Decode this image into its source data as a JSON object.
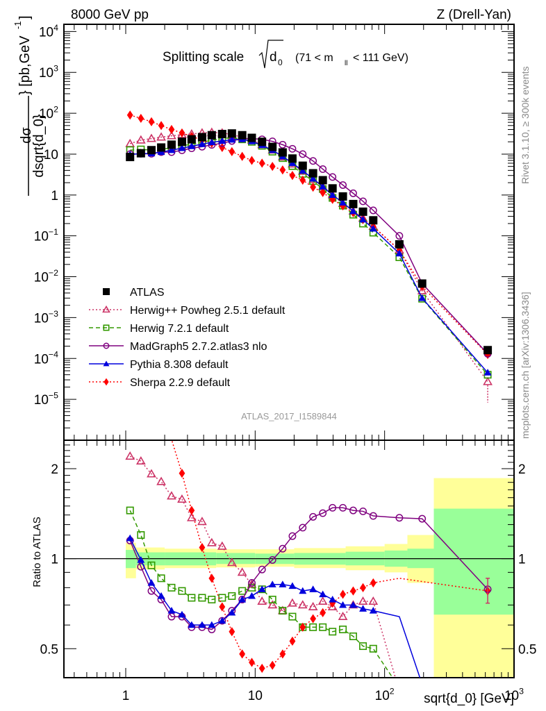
{
  "header": {
    "left_label": "8000 GeV pp",
    "right_label": "Z (Drell-Yan)"
  },
  "side_labels": {
    "rivet": "Rivet 3.1.10, ≥ 300k events",
    "source": "mcplots.cern.ch [arXiv:1306.3436]"
  },
  "watermark": "ATLAS_2017_I1589844",
  "colors": {
    "atlas": "#000000",
    "herwigpp": "#cc3366",
    "herwig7": "#339900",
    "madgraph": "#7f007f",
    "pythia": "#0000dd",
    "sherpa": "#ff0000",
    "band_stat": "#99ff99",
    "band_total": "#ffff99"
  },
  "chart_data": [
    {
      "type": "scatter",
      "panel": "main",
      "title": "Splitting scale √d₀ (71 < m_ll < 111 GeV)",
      "title_parts": {
        "prefix": "Splitting scale",
        "symbol": "d",
        "subscript": "0",
        "suffix": "(71 < m",
        "sub_ll": "ll",
        "suffix2": "< 111 GeV)"
      },
      "xlabel": "sqrt{d_0} [GeV]",
      "ylabel": "dσ/dsqrt{d_0} [pb,GeV⁻¹]",
      "ylabel_parts": {
        "num": "dσ",
        "den": "dsqrt{d_0}",
        "unit": "} [pb,GeV",
        "exp": "-1",
        "close": "]"
      },
      "xscale": "log",
      "yscale": "log",
      "xlim": [
        0.333,
        1000
      ],
      "ylim": [
        1e-06,
        15000
      ],
      "x_ticks": [
        {
          "value": 1,
          "label": "1"
        },
        {
          "value": 10,
          "label": "10"
        },
        {
          "value": 100,
          "label": "10",
          "exp": "2"
        },
        {
          "value": 1000,
          "label": "10",
          "exp": "3"
        }
      ],
      "y_ticks": [
        {
          "value": 10000,
          "label": "10",
          "exp": "4"
        },
        {
          "value": 1000,
          "label": "10",
          "exp": "3"
        },
        {
          "value": 100,
          "label": "10",
          "exp": "2"
        },
        {
          "value": 10,
          "label": "10"
        },
        {
          "value": 1,
          "label": "1"
        },
        {
          "value": 0.1,
          "label": "10",
          "exp": "−1"
        },
        {
          "value": 0.01,
          "label": "10",
          "exp": "−2"
        },
        {
          "value": 0.001,
          "label": "10",
          "exp": "−3"
        },
        {
          "value": 0.0001,
          "label": "10",
          "exp": "−4"
        },
        {
          "value": 1e-05,
          "label": "10",
          "exp": "−5"
        }
      ],
      "legend_position": "center-left",
      "x": [
        1.08,
        1.31,
        1.58,
        1.88,
        2.26,
        2.72,
        3.23,
        3.89,
        4.62,
        5.56,
        6.61,
        7.94,
        9.42,
        11.3,
        13.6,
        16.3,
        19.4,
        23.3,
        28.0,
        33.3,
        39.6,
        47.6,
        57.2,
        68.1,
        81.7,
        130,
        195,
        626
      ],
      "series": [
        {
          "name": "ATLAS",
          "key": "atlas",
          "marker": "square-filled",
          "line": "none",
          "values": [
            8.5,
            10.5,
            12.5,
            14.5,
            17,
            20,
            23,
            26,
            29,
            31,
            32,
            29,
            25,
            20,
            15,
            11,
            7.8,
            5.2,
            3.4,
            2.3,
            1.45,
            0.92,
            0.6,
            0.39,
            0.24,
            0.062,
            0.0068,
            0.00016
          ]
        },
        {
          "name": "Herwig++ Powheg 2.5.1 default",
          "key": "herwigpp",
          "marker": "triangle-open",
          "line": "dotted",
          "values": [
            18,
            22,
            24,
            26,
            28,
            30,
            31,
            33,
            34,
            33,
            30,
            26,
            22,
            17,
            12.5,
            8.5,
            5.7,
            3.8,
            2.4,
            1.6,
            1.0,
            0.62,
            0.4,
            0.27,
            0.17,
            0.045,
            0.0045,
            2.7e-05
          ]
        },
        {
          "name": "Herwig 7.2.1 default",
          "key": "herwig7",
          "marker": "square-open",
          "line": "dashed",
          "values": [
            12.5,
            13,
            12.5,
            13,
            14.5,
            16,
            17.5,
            19.5,
            22,
            24,
            25,
            23,
            20,
            16,
            11.5,
            8,
            5.1,
            3.3,
            2.2,
            1.4,
            0.85,
            0.55,
            0.33,
            0.2,
            0.12,
            0.03,
            0.0029,
            4e-05
          ]
        },
        {
          "name": "MadGraph5 2.7.2.atlas3 nlo",
          "key": "madgraph",
          "marker": "circle-open",
          "line": "solid",
          "values": [
            10,
            10.2,
            10.2,
            11.2,
            11.2,
            12.4,
            13.9,
            15.2,
            16.8,
            18.5,
            21,
            24,
            24,
            23,
            20.5,
            17,
            13.5,
            10,
            6.8,
            4.3,
            2.75,
            1.75,
            1.1,
            0.7,
            0.42,
            0.1,
            0.0068,
            0.00013
          ]
        },
        {
          "name": "Pythia 8.308 default",
          "key": "pythia",
          "marker": "triangle-filled",
          "line": "solid",
          "values": [
            9.8,
            10.3,
            10.4,
            11.2,
            12.5,
            14,
            15.6,
            17.5,
            19.5,
            21,
            22.5,
            23,
            20.5,
            16.5,
            12.5,
            8.8,
            6,
            3.9,
            2.5,
            1.6,
            1.0,
            0.65,
            0.4,
            0.25,
            0.15,
            0.037,
            0.003,
            4.5e-05
          ]
        },
        {
          "name": "Sherpa 2.2.9 default",
          "key": "sherpa",
          "marker": "diamond-filled",
          "line": "dotted",
          "values": [
            90,
            75,
            62,
            50,
            40,
            33,
            27,
            22,
            18.5,
            14.5,
            11.5,
            8.8,
            7,
            6,
            5,
            4.1,
            3.0,
            2.3,
            1.55,
            1.15,
            0.78,
            0.54,
            0.37,
            0.25,
            0.17,
            0.045,
            0.0058,
            0.000125
          ]
        }
      ]
    },
    {
      "type": "scatter",
      "panel": "ratio",
      "ylabel": "Ratio to ATLAS",
      "xscale": "log",
      "yscale": "log",
      "xlim": [
        0.333,
        1000
      ],
      "ylim": [
        0.4,
        2.49
      ],
      "y_ticks": [
        {
          "value": 0.5,
          "label": "0.5"
        },
        {
          "value": 1,
          "label": "1"
        },
        {
          "value": 2,
          "label": "2"
        }
      ],
      "reference_line": 1,
      "bands": {
        "bin_edges": [
          1.0,
          1.2,
          2.0,
          5,
          10,
          20,
          50,
          100,
          150,
          240,
          1000
        ],
        "stat": [
          [
            0.93,
            1.07
          ],
          [
            0.95,
            1.05
          ],
          [
            0.95,
            1.05
          ],
          [
            0.96,
            1.045
          ],
          [
            0.96,
            1.04
          ],
          [
            0.955,
            1.045
          ],
          [
            0.95,
            1.055
          ],
          [
            0.94,
            1.065
          ],
          [
            0.93,
            1.08
          ],
          [
            0.65,
            1.47
          ]
        ],
        "total": [
          [
            0.86,
            1.13
          ],
          [
            0.92,
            1.09
          ],
          [
            0.93,
            1.08
          ],
          [
            0.935,
            1.075
          ],
          [
            0.94,
            1.075
          ],
          [
            0.93,
            1.085
          ],
          [
            0.915,
            1.1
          ],
          [
            0.9,
            1.12
          ],
          [
            0.83,
            1.2
          ],
          [
            0.35,
            1.86
          ]
        ]
      },
      "series": [
        {
          "key": "herwigpp",
          "values": [
            2.2,
            2.12,
            1.92,
            1.81,
            1.62,
            1.58,
            1.37,
            1.33,
            1.13,
            1.1,
            0.97,
            0.9,
            0.82,
            0.72,
            0.7,
            0.67,
            0.71,
            0.7,
            0.69,
            0.72,
            0.69,
            0.64,
            0.7,
            0.72,
            0.72,
            0.36,
            null,
            null
          ]
        },
        {
          "key": "herwig7",
          "values": [
            1.45,
            1.2,
            0.95,
            0.86,
            0.8,
            0.78,
            0.74,
            0.74,
            0.73,
            0.74,
            0.75,
            0.78,
            0.8,
            0.79,
            0.73,
            0.67,
            0.64,
            0.59,
            0.59,
            0.59,
            0.57,
            0.58,
            0.55,
            0.51,
            0.5,
            0.37,
            null,
            null
          ]
        },
        {
          "key": "madgraph",
          "values": [
            1.15,
            0.94,
            0.78,
            0.73,
            0.64,
            0.64,
            0.59,
            0.59,
            0.58,
            0.62,
            0.67,
            0.73,
            0.83,
            0.92,
            0.99,
            1.08,
            1.19,
            1.27,
            1.38,
            1.42,
            1.48,
            1.48,
            1.45,
            1.44,
            1.39,
            1.37,
            1.36,
            0.79
          ]
        },
        {
          "key": "pythia",
          "values": [
            1.17,
            0.99,
            0.83,
            0.75,
            0.67,
            0.65,
            0.6,
            0.6,
            0.6,
            0.62,
            0.66,
            0.73,
            0.75,
            0.79,
            0.82,
            0.82,
            0.81,
            0.78,
            0.79,
            0.76,
            0.73,
            0.7,
            0.7,
            0.68,
            0.67,
            0.64,
            0.38,
            null
          ]
        },
        {
          "key": "sherpa",
          "values": [
            null,
            null,
            null,
            null,
            null,
            1.93,
            1.45,
            1.09,
            0.86,
            0.69,
            0.57,
            0.48,
            0.45,
            0.43,
            0.44,
            0.48,
            0.53,
            0.59,
            0.63,
            0.66,
            0.71,
            0.76,
            0.78,
            0.8,
            0.83,
            0.86,
            null,
            0.78
          ]
        }
      ]
    }
  ],
  "legend": [
    {
      "key": "atlas",
      "label": "ATLAS"
    },
    {
      "key": "herwigpp",
      "label": "Herwig++ Powheg 2.5.1 default"
    },
    {
      "key": "herwig7",
      "label": "Herwig 7.2.1 default"
    },
    {
      "key": "madgraph",
      "label": "MadGraph5 2.7.2.atlas3 nlo"
    },
    {
      "key": "pythia",
      "label": "Pythia 8.308 default"
    },
    {
      "key": "sherpa",
      "label": "Sherpa 2.2.9 default"
    }
  ]
}
